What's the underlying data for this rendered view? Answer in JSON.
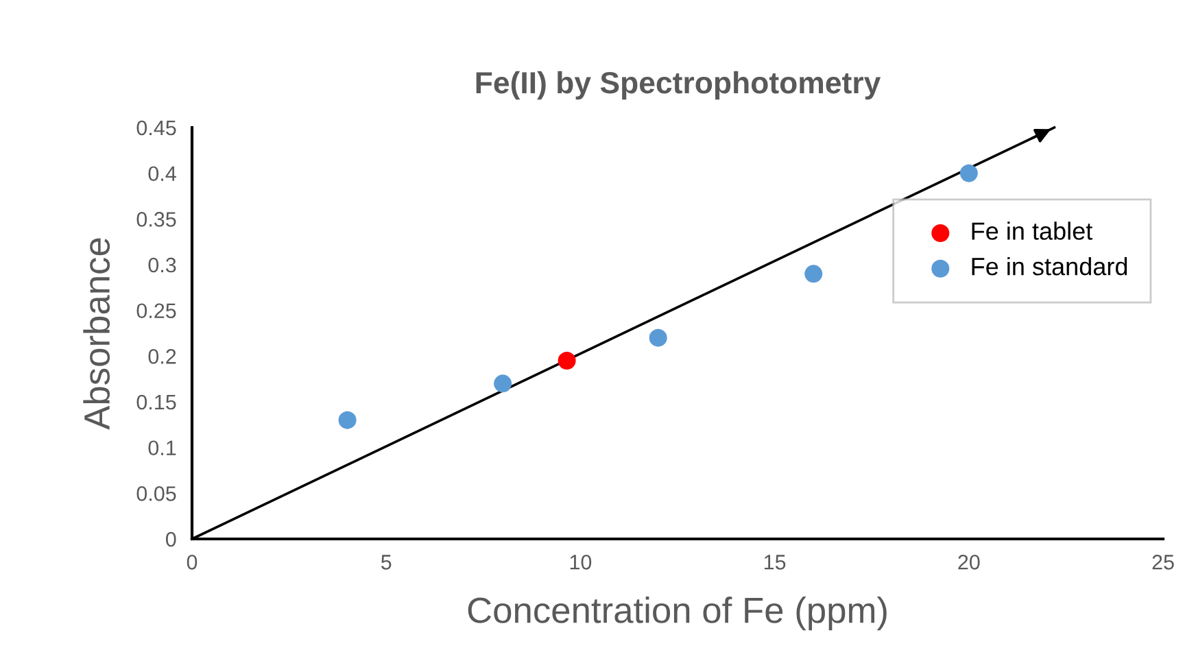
{
  "chart_data": {
    "type": "scatter",
    "title": "Fe(II) by Spectrophotometry",
    "xlabel": "Concentration of Fe (ppm)",
    "ylabel": "Absorbance",
    "xlim": [
      0,
      25
    ],
    "xticks": [
      0,
      5,
      10,
      15,
      20,
      25
    ],
    "ylim": [
      0,
      0.45
    ],
    "yticks": [
      0,
      0.05,
      0.1,
      0.15,
      0.2,
      0.25,
      0.3,
      0.35,
      0.4,
      0.45
    ],
    "grid": false,
    "legend": "right",
    "marker": "circle",
    "series": [
      {
        "type": "line",
        "color": "#000000",
        "x": [
          0,
          22.2
        ],
        "values": [
          0,
          0.45
        ],
        "marker": "none",
        "line_style": "solid"
      },
      {
        "name": "Fe in tablet",
        "color": "#ff0000",
        "x": [
          9.65
        ],
        "values": [
          0.195
        ]
      },
      {
        "name": "Fe in standard",
        "color": "#5b9bd5",
        "x": [
          4,
          8,
          12,
          16,
          20
        ],
        "values": [
          0.13,
          0.17,
          0.22,
          0.29,
          0.4
        ]
      }
    ]
  }
}
